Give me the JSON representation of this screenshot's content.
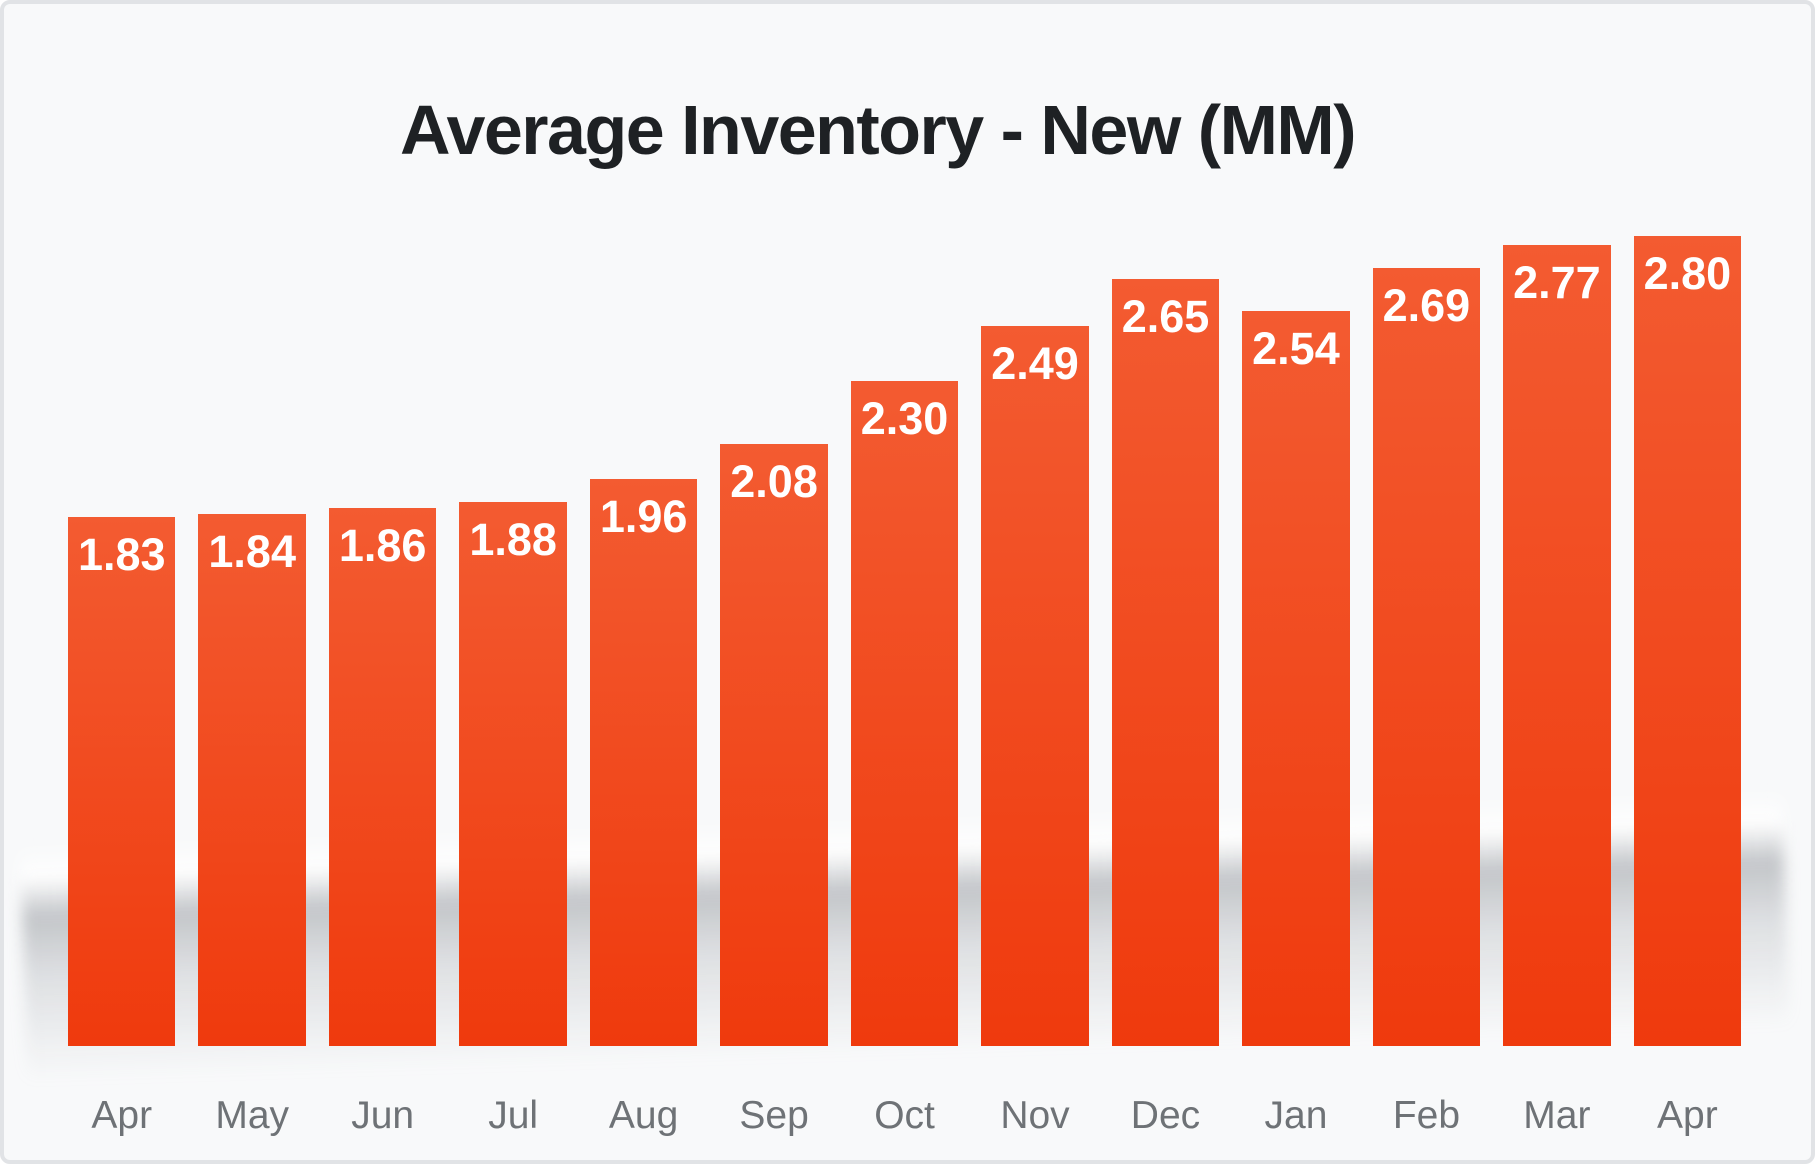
{
  "card": {
    "background": "#f8f9fa",
    "border_color": "#e1e3e6"
  },
  "chart_data": {
    "type": "bar",
    "title": "Average Inventory - New (MM)",
    "categories": [
      "Apr",
      "May",
      "Jun",
      "Jul",
      "Aug",
      "Sep",
      "Oct",
      "Nov",
      "Dec",
      "Jan",
      "Feb",
      "Mar",
      "Apr"
    ],
    "values": [
      1.83,
      1.84,
      1.86,
      1.88,
      1.96,
      2.08,
      2.3,
      2.49,
      2.65,
      2.54,
      2.69,
      2.77,
      2.8
    ],
    "value_labels": [
      "1.83",
      "1.84",
      "1.86",
      "1.88",
      "1.96",
      "2.08",
      "2.30",
      "2.49",
      "2.65",
      "2.54",
      "2.69",
      "2.77",
      "2.80"
    ],
    "xlabel": "",
    "ylabel": "",
    "ylim": [
      0,
      2.8
    ],
    "grid": false,
    "legend": false,
    "value_labels_position": "inside-top",
    "colors": {
      "bar_gradient_top": "#f35b31",
      "bar_gradient_bottom": "#ef3a0d",
      "value_label": "#ffffff",
      "axis_label": "#6e7276",
      "title": "#1e2124"
    }
  }
}
